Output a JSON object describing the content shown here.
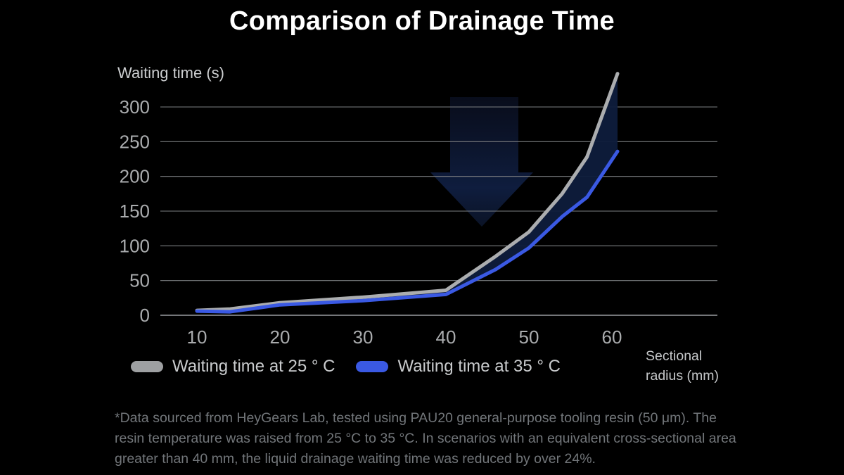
{
  "ui": {
    "title": "Comparison of Drainage Time",
    "y_axis_label": "Waiting time (s)",
    "x_axis_label_lines": [
      "Sectional",
      "radius (mm)"
    ],
    "legend": [
      {
        "label": "Waiting time at 25 ° C",
        "color": "#9EA0A2"
      },
      {
        "label": "Waiting time at 35 ° C",
        "color": "#3A59E3"
      }
    ],
    "footnote": "*Data sourced from HeyGears Lab, tested using PAU20 general-purpose tooling resin (50 μm). The resin temperature was raised from 25 °C to 35 °C. In scenarios with an equivalent cross-sectional area greater than 40 mm, the liquid drainage waiting time was reduced by over 24%.",
    "colors": {
      "background": "#000000",
      "grid_line": "#7c7f82",
      "axis_line": "#9b9ea1",
      "tick_text": "#aaacae",
      "band_fill": "#0e1c3b",
      "arrow_top": "#0a0f20",
      "arrow_bottom": "#0f1d3e"
    }
  },
  "chart_data": {
    "type": "line",
    "title": "Comparison of Drainage Time",
    "xlabel": "Sectional radius (mm)",
    "ylabel": "Waiting time (s)",
    "x": [
      10,
      14,
      20,
      30,
      40,
      46,
      50,
      54,
      57,
      60
    ],
    "xticks": [
      10,
      20,
      30,
      40,
      50,
      60
    ],
    "yticks": [
      0,
      50,
      100,
      150,
      200,
      250,
      300
    ],
    "xlim": [
      10,
      60
    ],
    "ylim": [
      0,
      355
    ],
    "grid": "horizontal-only",
    "legend_position": "bottom-left",
    "series": [
      {
        "name": "Waiting time at 25 ° C",
        "color": "#ABADAF",
        "values": [
          7,
          9,
          18,
          26,
          36,
          85,
          120,
          175,
          228,
          348
        ]
      },
      {
        "name": "Waiting time at 35 ° C",
        "color": "#3A59E3",
        "values": [
          6,
          5,
          15,
          21,
          30,
          66,
          97,
          142,
          170,
          236
        ]
      }
    ],
    "band_fill_between_series": true,
    "annotations": [
      {
        "type": "down-arrow",
        "meaning": "waiting time reduction from 25 °C to 35 °C"
      }
    ]
  }
}
